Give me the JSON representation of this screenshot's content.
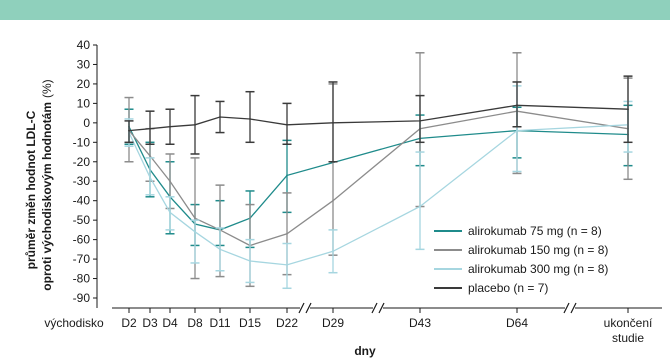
{
  "colors": {
    "header": "#8fd0bc",
    "axis": "#1a1a1a"
  },
  "chart_data": {
    "type": "line",
    "xlabel": "dny",
    "ylabel_line1": "průměr změn hodnot LDL-C",
    "ylabel_line2": "oproti východiskovým hodnotám",
    "ylabel_unit": "(%)",
    "ylim": [
      -90,
      40
    ],
    "yticks": [
      40,
      30,
      20,
      10,
      0,
      -10,
      -20,
      -30,
      -40,
      -50,
      -60,
      -70,
      -80,
      -90
    ],
    "axis_breaks": "between D22 and D29, between D29 and D43, between D64 and ukončení studie",
    "x_categories": [
      "východisko",
      "D2",
      "D3",
      "D4",
      "D8",
      "D11",
      "D15",
      "D22",
      "D29",
      "D43",
      "D64",
      "ukončení studie"
    ],
    "x_label_lines": [
      [
        "východisko"
      ],
      [
        "D2"
      ],
      [
        "D3"
      ],
      [
        "D4"
      ],
      [
        "D8"
      ],
      [
        "D11"
      ],
      [
        "D15"
      ],
      [
        "D22"
      ],
      [
        "D29"
      ],
      [
        "D43"
      ],
      [
        "D64"
      ],
      [
        "ukončení",
        "studie"
      ]
    ],
    "legend_position": "lower-right",
    "series": [
      {
        "name": "alirokumab  75 mg (n = 8)",
        "color": "#1f8b8b",
        "x": [
          "D2",
          "D3",
          "D4",
          "D8",
          "D11",
          "D15",
          "D22",
          "D43",
          "D64",
          "ukončení studie"
        ],
        "values": [
          -2,
          -24,
          -38,
          -52,
          -55,
          -49,
          -27,
          -8,
          -4,
          -6
        ],
        "err_low": [
          -11,
          -38,
          -57,
          -63,
          -63,
          -64,
          -46,
          -22,
          -18,
          -22
        ],
        "err_high": [
          7,
          -10,
          -20,
          -42,
          -40,
          -35,
          -9,
          4,
          8,
          9
        ]
      },
      {
        "name": "alirokumab 150 mg (n = 8)",
        "color": "#8c8c8c",
        "x": [
          "D2",
          "D3",
          "D4",
          "D8",
          "D11",
          "D15",
          "D22",
          "D29",
          "D43",
          "D64",
          "ukončení studie"
        ],
        "values": [
          -4,
          -17,
          -30,
          -49,
          -55,
          -63,
          -57,
          -40,
          -3,
          6,
          -3
        ],
        "err_low": [
          -20,
          -30,
          -44,
          -80,
          -79,
          -84,
          -78,
          -68,
          -43,
          -26,
          -29
        ],
        "err_high": [
          13,
          -3,
          -16,
          -18,
          -32,
          -42,
          -36,
          20,
          36,
          36,
          23
        ]
      },
      {
        "name": "alirokumab 300 mg (n = 8)",
        "color": "#a6d6e0",
        "x": [
          "D2",
          "D3",
          "D4",
          "D8",
          "D11",
          "D15",
          "D22",
          "D29",
          "D43",
          "D64",
          "ukončení studie"
        ],
        "values": [
          -5,
          -28,
          -46,
          -56,
          -65,
          -71,
          -73,
          -66,
          -43,
          -4,
          -1
        ],
        "err_low": [
          -12,
          -37,
          -55,
          -72,
          -76,
          -82,
          -85,
          -77,
          -65,
          -25,
          -15
        ],
        "err_high": [
          2,
          -18,
          -38,
          -50,
          -54,
          -60,
          -62,
          -55,
          -15,
          19,
          11
        ]
      },
      {
        "name": "placebo (n = 7)",
        "color": "#3a3a3a",
        "x": [
          "D2",
          "D3",
          "D4",
          "D8",
          "D11",
          "D15",
          "D22",
          "D29",
          "D43",
          "D64",
          "ukončení studie"
        ],
        "values": [
          -4,
          -3,
          -2,
          -1,
          3,
          2,
          -1,
          0,
          1,
          9,
          7
        ],
        "err_low": [
          -10,
          -11,
          -11,
          -16,
          -5,
          -10,
          -11,
          -20,
          -10,
          -2,
          -10
        ],
        "err_high": [
          1,
          6,
          7,
          14,
          11,
          16,
          10,
          21,
          14,
          21,
          24
        ]
      }
    ]
  }
}
